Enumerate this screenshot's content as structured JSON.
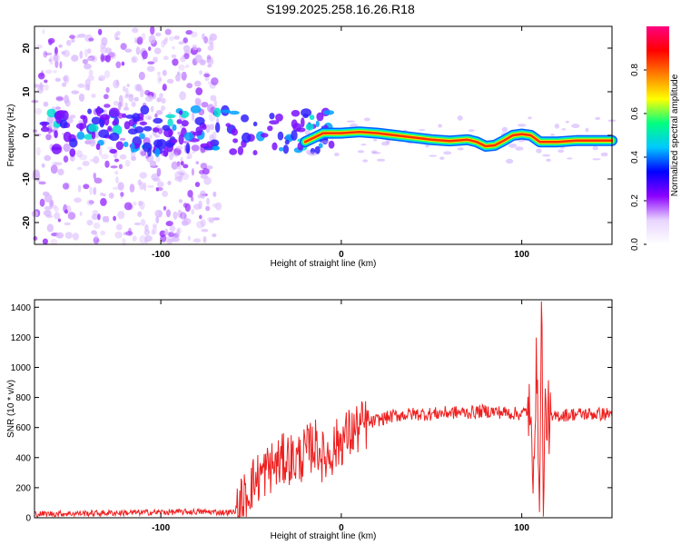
{
  "title": "S199.2025.258.16.26.R18",
  "chart_data": [
    {
      "type": "heatmap",
      "xlabel": "Height of straight line (km)",
      "ylabel": "Frequency (Hz)",
      "xlim": [
        -170,
        150
      ],
      "ylim": [
        -25,
        25
      ],
      "xticks": [
        -100,
        0,
        100
      ],
      "yticks": [
        -20,
        -10,
        0,
        10,
        20
      ],
      "colorbar": {
        "label": "Normalized spectral amplitude",
        "ticks": [
          0.0,
          0.2,
          0.4,
          0.6,
          0.8
        ],
        "range": [
          0,
          1
        ],
        "colormap": [
          "#ffffff",
          "#e8d4ff",
          "#8b00ff",
          "#0000ff",
          "#00c8ff",
          "#00ff80",
          "#ffff00",
          "#ff8000",
          "#ff0000",
          "#ff0080"
        ]
      },
      "peak_frequency_track": {
        "x": [
          -20,
          -15,
          -10,
          0,
          10,
          20,
          30,
          40,
          50,
          60,
          70,
          75,
          80,
          85,
          90,
          95,
          100,
          105,
          110,
          120,
          130,
          150
        ],
        "y": [
          -1.5,
          -0.5,
          0.5,
          0.5,
          0.8,
          0.5,
          0,
          -0.5,
          -1,
          -1.3,
          -1,
          -1.5,
          -2.5,
          -2.3,
          -1.2,
          0,
          0.3,
          0,
          -1.5,
          -1.5,
          -1.2,
          -1.2
        ]
      }
    },
    {
      "type": "line",
      "xlabel": "Height of straight line (km)",
      "ylabel": "SNR (10 * v/v)",
      "xlim": [
        -170,
        150
      ],
      "ylim": [
        0,
        1450
      ],
      "xticks": [
        -100,
        0,
        100
      ],
      "yticks": [
        0,
        200,
        400,
        600,
        800,
        1000,
        1200,
        1400
      ],
      "color": "#ee2020",
      "series": [
        {
          "x": [
            -170,
            -140,
            -110,
            -80,
            -60,
            -55,
            -50,
            -45,
            -40,
            -35,
            -30,
            -25,
            -20,
            -15,
            -12,
            -10,
            -5,
            0,
            5,
            10,
            20,
            30,
            40,
            50,
            60,
            70,
            80,
            90,
            100,
            104,
            106,
            108,
            110,
            111,
            112,
            113,
            114,
            116,
            120,
            130,
            140,
            150
          ],
          "y": [
            25,
            30,
            35,
            40,
            35,
            100,
            220,
            280,
            330,
            360,
            400,
            380,
            430,
            490,
            460,
            390,
            450,
            520,
            560,
            600,
            650,
            680,
            690,
            690,
            700,
            700,
            710,
            700,
            690,
            720,
            300,
            980,
            200,
            1450,
            90,
            700,
            680,
            650,
            680,
            690,
            690,
            690
          ]
        }
      ]
    }
  ]
}
